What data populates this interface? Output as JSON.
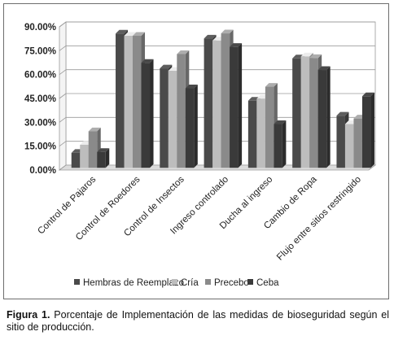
{
  "chart_data": {
    "type": "bar",
    "style": "3d-clustered-column",
    "grid": true,
    "legend_position": "bottom",
    "ylim": [
      0,
      90
    ],
    "ytick_labels": [
      "0.00%",
      "15.00%",
      "30.00%",
      "45.00%",
      "60.00%",
      "75.00%",
      "90.00%"
    ],
    "categories": [
      "Control de Pajaros",
      "Control de Roedores",
      "Control de Insectos",
      "Ingreso controlado",
      "Ducha al ingreso",
      "Cambio de Ropa",
      "Flujo entre sitios restringido"
    ],
    "series": [
      {
        "name": "Hembras de Reemplazo",
        "color": "#4a4a4a",
        "values": [
          9.4,
          84.4,
          62.5,
          81.3,
          42.2,
          68.8,
          32.8
        ]
      },
      {
        "name": "Cría",
        "color": "#bdbdbd",
        "values": [
          14.5,
          83.0,
          61.0,
          80.0,
          43.5,
          70.0,
          27.5
        ]
      },
      {
        "name": "Precebo",
        "color": "#8a8a8a",
        "values": [
          23.0,
          83.0,
          71.5,
          84.5,
          51.0,
          69.0,
          31.0
        ]
      },
      {
        "name": "Ceba",
        "color": "#3a3a3a",
        "values": [
          10.0,
          66.0,
          50.0,
          76.0,
          27.5,
          61.5,
          45.0
        ]
      }
    ]
  },
  "caption": {
    "label": "Figura 1.",
    "text": " Porcentaje de Implementación de las medidas de bioseguridad según el sitio de producción."
  }
}
